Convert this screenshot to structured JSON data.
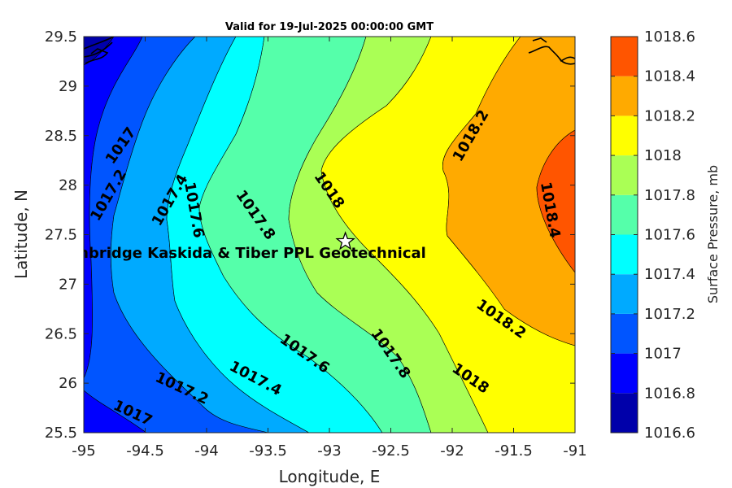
{
  "chart_data": {
    "type": "heatmap",
    "title": "Valid for 19-Jul-2025 00:00:00 GMT",
    "xlabel": "Longitude, E",
    "ylabel": "Latitude, N",
    "xlim": [
      -95,
      -91
    ],
    "ylim": [
      25.5,
      29.5
    ],
    "x_ticks": [
      "-95",
      "-94.5",
      "-94",
      "-93.5",
      "-93",
      "-92.5",
      "-92",
      "-91.5",
      "-91"
    ],
    "y_ticks": [
      "29.5",
      "29",
      "28.5",
      "28",
      "27.5",
      "27",
      "26.5",
      "26",
      "25.5"
    ],
    "colorbar": {
      "label": "Surface Pressure, mb",
      "ticks": [
        "1018.6",
        "1018.4",
        "1018.2",
        "1018",
        "1017.8",
        "1017.6",
        "1017.4",
        "1017.2",
        "1017",
        "1016.8",
        "1016.6"
      ],
      "levels": [
        1016.6,
        1016.8,
        1017.0,
        1017.2,
        1017.4,
        1017.6,
        1017.8,
        1018.0,
        1018.2,
        1018.4,
        1018.6
      ],
      "colors": [
        "#0000aa",
        "#0000ff",
        "#0055ff",
        "#00aaff",
        "#00ffff",
        "#55ffaa",
        "#aaff55",
        "#ffff00",
        "#ffaa00",
        "#ff5500",
        "#ff0000"
      ]
    },
    "contour_labels": [
      {
        "text": "1017",
        "lon": -94.7,
        "lat": 28.4
      },
      {
        "text": "1017.2",
        "lon": -94.8,
        "lat": 27.9
      },
      {
        "text": "1017.4",
        "lon": -94.3,
        "lat": 27.85
      },
      {
        "text": "1017.6",
        "lon": -94.1,
        "lat": 27.75
      },
      {
        "text": "1017.8",
        "lon": -93.6,
        "lat": 27.7
      },
      {
        "text": "1018",
        "lon": -93.0,
        "lat": 27.95
      },
      {
        "text": "1018.2",
        "lon": -91.85,
        "lat": 28.5
      },
      {
        "text": "1018.4",
        "lon": -91.2,
        "lat": 27.75
      },
      {
        "text": "1018.2",
        "lon": -91.6,
        "lat": 26.65
      },
      {
        "text": "1017.8",
        "lon": -92.5,
        "lat": 26.3
      },
      {
        "text": "1018",
        "lon": -91.85,
        "lat": 26.05
      },
      {
        "text": "1017.6",
        "lon": -93.2,
        "lat": 26.3
      },
      {
        "text": "1017.4",
        "lon": -93.6,
        "lat": 26.05
      },
      {
        "text": "1017.2",
        "lon": -94.2,
        "lat": 25.95
      },
      {
        "text": "1017",
        "lon": -94.6,
        "lat": 25.7
      }
    ],
    "site": {
      "name": "CTI Enbridge  Kaskida & Tiber PPL Geotechnical",
      "lon": -92.87,
      "lat": 27.43,
      "marker": "star"
    }
  }
}
